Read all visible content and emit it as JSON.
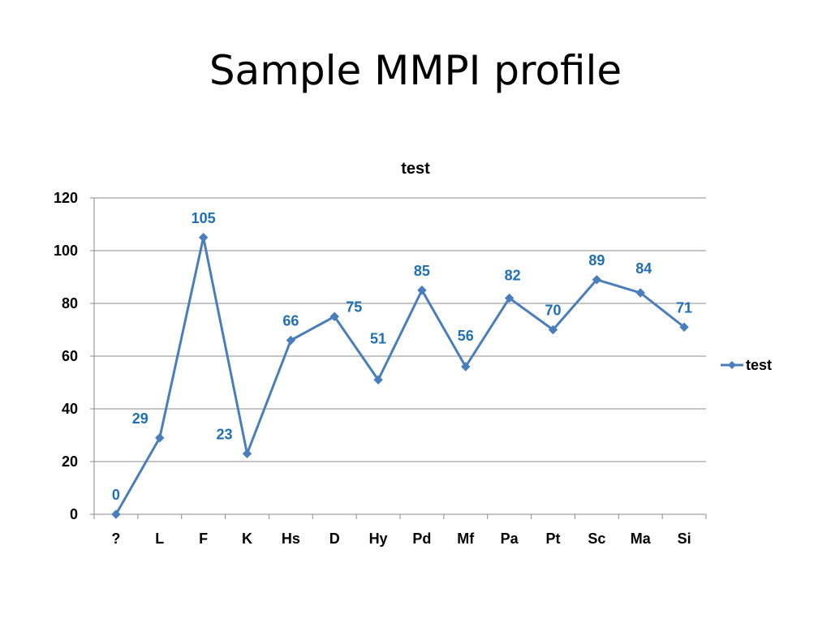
{
  "slide": {
    "title": "Sample MMPI profile"
  },
  "chart_data": {
    "type": "line",
    "title": "test",
    "categories": [
      "?",
      "L",
      "F",
      "K",
      "Hs",
      "D",
      "Hy",
      "Pd",
      "Mf",
      "Pa",
      "Pt",
      "Sc",
      "Ma",
      "Si"
    ],
    "series": [
      {
        "name": "test",
        "values": [
          0,
          29,
          105,
          23,
          66,
          75,
          51,
          85,
          56,
          82,
          70,
          89,
          84,
          71
        ],
        "color": "#4a7ebb"
      }
    ],
    "data_labels": [
      "0",
      "29",
      "105",
      "23",
      "66",
      "75",
      "51",
      "85",
      "56",
      "82",
      "70",
      "89",
      "84",
      "71"
    ],
    "data_label_color": "#1f6fb5",
    "ylim": [
      0,
      120
    ],
    "yticks": [
      0,
      20,
      40,
      60,
      80,
      100,
      120
    ],
    "ytick_labels": [
      "0",
      "20",
      "40",
      "60",
      "80",
      "100",
      "120"
    ],
    "xlabel": "",
    "ylabel": "",
    "grid": "horizontal",
    "legend_position": "right",
    "marker": "diamond"
  }
}
